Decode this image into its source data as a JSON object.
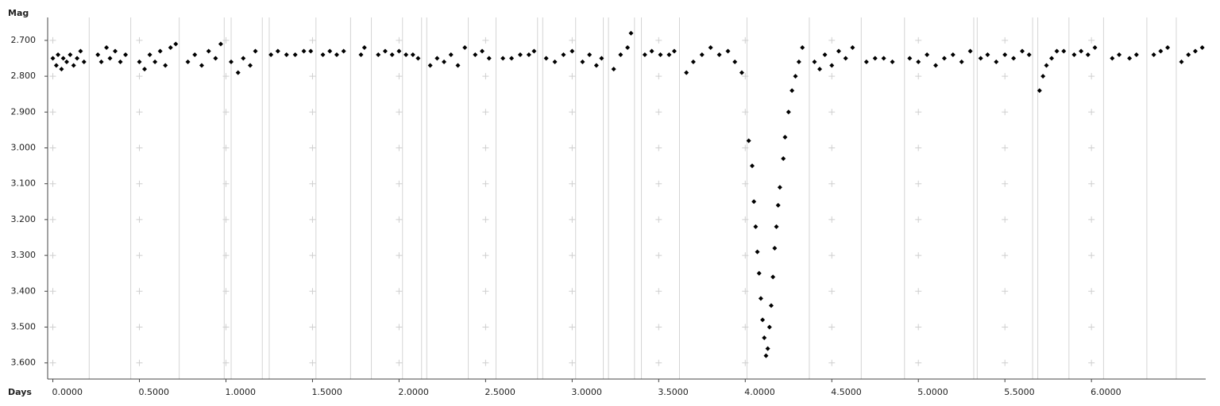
{
  "chart_data": {
    "type": "scatter",
    "ylabel": "Mag",
    "xlabel": "Days",
    "x": [
      0.0,
      0.02,
      0.03,
      0.05,
      0.06,
      0.08,
      0.1,
      0.12,
      0.14,
      0.16,
      0.18,
      0.26,
      0.28,
      0.31,
      0.33,
      0.36,
      0.39,
      0.42,
      0.5,
      0.53,
      0.56,
      0.59,
      0.62,
      0.65,
      0.68,
      0.71,
      0.78,
      0.82,
      0.86,
      0.9,
      0.94,
      0.97,
      1.03,
      1.07,
      1.1,
      1.14,
      1.17,
      1.26,
      1.3,
      1.35,
      1.4,
      1.45,
      1.49,
      1.56,
      1.6,
      1.64,
      1.68,
      1.78,
      1.8,
      1.88,
      1.92,
      1.96,
      2.0,
      2.04,
      2.08,
      2.11,
      2.18,
      2.22,
      2.26,
      2.3,
      2.34,
      2.38,
      2.44,
      2.48,
      2.52,
      2.6,
      2.65,
      2.7,
      2.75,
      2.78,
      2.85,
      2.9,
      2.95,
      3.0,
      3.06,
      3.1,
      3.14,
      3.17,
      3.24,
      3.28,
      3.32,
      3.34,
      3.42,
      3.46,
      3.51,
      3.56,
      3.59,
      3.66,
      3.7,
      3.75,
      3.8,
      3.85,
      3.9,
      3.94,
      3.98,
      4.02,
      4.04,
      4.05,
      4.06,
      4.07,
      4.08,
      4.09,
      4.1,
      4.11,
      4.12,
      4.13,
      4.14,
      4.15,
      4.16,
      4.17,
      4.18,
      4.19,
      4.2,
      4.22,
      4.23,
      4.25,
      4.27,
      4.29,
      4.31,
      4.33,
      4.4,
      4.43,
      4.46,
      4.5,
      4.54,
      4.58,
      4.62,
      4.7,
      4.75,
      4.8,
      4.85,
      4.95,
      5.0,
      5.05,
      5.1,
      5.15,
      5.2,
      5.25,
      5.3,
      5.36,
      5.4,
      5.45,
      5.5,
      5.55,
      5.6,
      5.64,
      5.7,
      5.72,
      5.74,
      5.77,
      5.8,
      5.84,
      5.9,
      5.94,
      5.98,
      6.02,
      6.12,
      6.16,
      6.22,
      6.26,
      6.36,
      6.4,
      6.44,
      6.52,
      6.56,
      6.6,
      6.64
    ],
    "values": [
      2.75,
      2.77,
      2.74,
      2.78,
      2.75,
      2.76,
      2.74,
      2.77,
      2.75,
      2.73,
      2.76,
      2.74,
      2.76,
      2.72,
      2.75,
      2.73,
      2.76,
      2.74,
      2.76,
      2.78,
      2.74,
      2.76,
      2.73,
      2.77,
      2.72,
      2.71,
      2.76,
      2.74,
      2.77,
      2.73,
      2.75,
      2.71,
      2.76,
      2.79,
      2.75,
      2.77,
      2.73,
      2.74,
      2.73,
      2.74,
      2.74,
      2.73,
      2.73,
      2.74,
      2.73,
      2.74,
      2.73,
      2.74,
      2.72,
      2.74,
      2.73,
      2.74,
      2.73,
      2.74,
      2.74,
      2.75,
      2.77,
      2.75,
      2.76,
      2.74,
      2.77,
      2.72,
      2.74,
      2.73,
      2.75,
      2.75,
      2.75,
      2.74,
      2.74,
      2.73,
      2.75,
      2.76,
      2.74,
      2.73,
      2.76,
      2.74,
      2.77,
      2.75,
      2.78,
      2.74,
      2.72,
      2.68,
      2.74,
      2.73,
      2.74,
      2.74,
      2.73,
      2.79,
      2.76,
      2.74,
      2.72,
      2.74,
      2.73,
      2.76,
      2.79,
      2.98,
      3.05,
      3.15,
      3.22,
      3.29,
      3.35,
      3.42,
      3.48,
      3.53,
      3.58,
      3.56,
      3.5,
      3.44,
      3.36,
      3.28,
      3.22,
      3.16,
      3.11,
      3.03,
      2.97,
      2.9,
      2.84,
      2.8,
      2.76,
      2.72,
      2.76,
      2.78,
      2.74,
      2.77,
      2.73,
      2.75,
      2.72,
      2.76,
      2.75,
      2.75,
      2.76,
      2.75,
      2.76,
      2.74,
      2.77,
      2.75,
      2.74,
      2.76,
      2.73,
      2.75,
      2.74,
      2.76,
      2.74,
      2.75,
      2.73,
      2.74,
      2.84,
      2.8,
      2.77,
      2.75,
      2.73,
      2.73,
      2.74,
      2.73,
      2.74,
      2.72,
      2.75,
      2.74,
      2.75,
      2.74,
      2.74,
      2.73,
      2.72,
      2.76,
      2.74,
      2.73,
      2.72
    ],
    "color": "#000000",
    "gap_lines": [
      0.21,
      0.45,
      0.73,
      0.99,
      1.03,
      1.21,
      1.25,
      1.52,
      1.72,
      1.84,
      2.02,
      2.13,
      2.16,
      2.4,
      2.56,
      2.8,
      2.83,
      3.02,
      3.18,
      3.21,
      3.36,
      3.4,
      3.62,
      4.01,
      4.37,
      4.67,
      4.92,
      5.32,
      5.34,
      5.66,
      5.69,
      5.87,
      6.07,
      6.32,
      6.49
    ],
    "xlim": [
      -0.03,
      6.66
    ],
    "ylim": [
      2.636,
      3.645
    ],
    "y_inverted": true,
    "xticks": [
      {
        "value": 0,
        "label": "0.0000"
      },
      {
        "value": 0.5,
        "label": "0.5000"
      },
      {
        "value": 1,
        "label": "1.0000"
      },
      {
        "value": 1.5,
        "label": "1.5000"
      },
      {
        "value": 2,
        "label": "2.0000"
      },
      {
        "value": 2.5,
        "label": "2.5000"
      },
      {
        "value": 3,
        "label": "3.0000"
      },
      {
        "value": 3.5,
        "label": "3.5000"
      },
      {
        "value": 4,
        "label": "4.0000"
      },
      {
        "value": 4.5,
        "label": "4.5000"
      },
      {
        "value": 5,
        "label": "5.0000"
      },
      {
        "value": 5.5,
        "label": "5.5000"
      },
      {
        "value": 6,
        "label": "6.0000"
      }
    ],
    "yticks": [
      {
        "value": 2.7,
        "label": "2.700"
      },
      {
        "value": 2.8,
        "label": "2.800"
      },
      {
        "value": 2.9,
        "label": "2.900"
      },
      {
        "value": 3.0,
        "label": "3.000"
      },
      {
        "value": 3.1,
        "label": "3.100"
      },
      {
        "value": 3.2,
        "label": "3.200"
      },
      {
        "value": 3.3,
        "label": "3.300"
      },
      {
        "value": 3.4,
        "label": "3.400"
      },
      {
        "value": 3.5,
        "label": "3.500"
      },
      {
        "value": 3.6,
        "label": "3.600"
      }
    ],
    "grid": true
  }
}
